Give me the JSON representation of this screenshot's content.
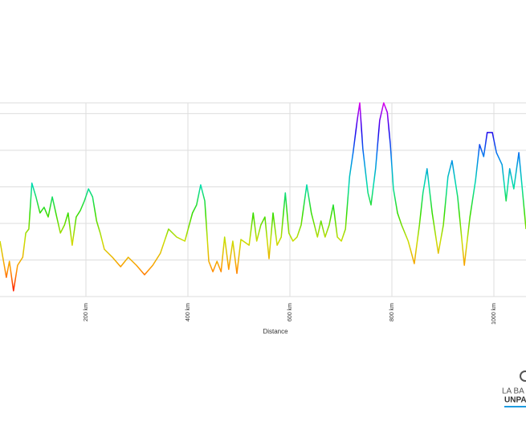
{
  "chart_data": {
    "type": "line",
    "x_label": "Distance",
    "x": [
      31.5,
      44,
      50,
      58,
      66,
      76,
      82,
      88,
      94,
      102,
      110,
      118,
      126,
      134,
      142,
      150,
      158,
      165,
      173,
      181,
      189,
      197,
      205,
      213,
      221,
      228,
      236,
      252,
      268,
      283,
      299,
      315,
      331,
      346,
      362,
      378,
      394,
      409,
      417,
      425,
      433,
      441,
      449,
      457,
      465,
      472,
      480,
      488,
      496,
      504,
      520,
      528,
      535,
      543,
      551,
      559,
      567,
      575,
      583,
      591,
      598,
      606,
      614,
      622,
      633,
      642,
      654,
      661,
      669,
      677,
      685,
      693,
      701,
      709,
      717,
      724,
      732,
      737,
      743,
      753,
      759,
      768,
      776,
      784,
      791,
      797,
      803,
      811,
      819,
      832,
      844,
      854,
      861,
      869,
      879,
      891,
      901,
      910,
      918,
      929,
      942,
      953,
      964,
      972,
      980,
      987,
      997,
      1005,
      1016,
      1024,
      1031,
      1039,
      1049,
      1055,
      1063
    ],
    "values": [
      303,
      105,
      193,
      31,
      171,
      215,
      347,
      369,
      620,
      545,
      457,
      488,
      435,
      545,
      444,
      347,
      391,
      457,
      281,
      435,
      470,
      523,
      589,
      545,
      413,
      347,
      259,
      215,
      163,
      215,
      171,
      119,
      171,
      237,
      369,
      325,
      303,
      457,
      501,
      611,
      523,
      193,
      136,
      193,
      136,
      325,
      149,
      303,
      127,
      312,
      281,
      457,
      303,
      391,
      435,
      207,
      457,
      281,
      325,
      567,
      347,
      303,
      325,
      391,
      611,
      457,
      325,
      413,
      325,
      391,
      501,
      325,
      303,
      369,
      655,
      787,
      963,
      1059,
      809,
      567,
      501,
      699,
      963,
      1059,
      1007,
      831,
      589,
      457,
      391,
      303,
      180,
      391,
      567,
      699,
      457,
      237,
      391,
      655,
      743,
      545,
      171,
      435,
      633,
      831,
      765,
      897,
      897,
      787,
      721,
      523,
      699,
      589,
      787,
      611,
      369
    ],
    "colorscale": [
      "#ff0000",
      "#ff9900",
      "#ccdd00",
      "#33dd00",
      "#00ddaa",
      "#0088ee",
      "#2200ee",
      "#dd00ee"
    ],
    "xlim": [
      31.5,
      1063
    ],
    "ylim": [
      0,
      1059
    ],
    "xticks": [
      {
        "value": 200,
        "label": "200 km"
      },
      {
        "value": 400,
        "label": "400 km"
      },
      {
        "value": 600,
        "label": "600 km"
      },
      {
        "value": 800,
        "label": "800 km"
      },
      {
        "value": 1000,
        "label": "1000 km"
      }
    ],
    "yticks": [
      0,
      200,
      400,
      600,
      800,
      1000
    ],
    "grid": true
  },
  "logo": {
    "line1": "LA BA",
    "line2": "UNPA"
  }
}
